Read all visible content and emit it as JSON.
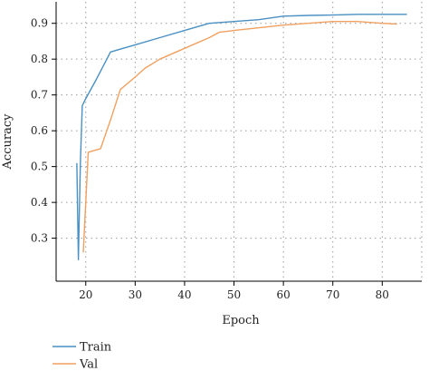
{
  "chart_data": {
    "type": "line",
    "title": "",
    "xlabel": "Epoch",
    "ylabel": "Accuracy",
    "xlim": [
      14,
      88
    ],
    "ylim": [
      0.18,
      0.96
    ],
    "xticks": [
      20,
      30,
      40,
      50,
      60,
      70,
      80
    ],
    "yticks": [
      0.3,
      0.4,
      0.5,
      0.6,
      0.7,
      0.8,
      0.9
    ],
    "xtick_labels": [
      "20",
      "30",
      "40",
      "50",
      "60",
      "70",
      "80"
    ],
    "ytick_labels": [
      "0.3",
      "0.4",
      "0.5",
      "0.6",
      "0.7",
      "0.8",
      "0.9"
    ],
    "grid": true,
    "legend_position": "bottom-left",
    "series": [
      {
        "name": "Train",
        "color": "#4a90c2",
        "x": [
          18.2,
          18.5,
          18.9,
          19.3,
          20,
          22,
          25,
          30,
          35,
          40,
          45,
          50,
          55,
          60,
          65,
          70,
          75,
          80,
          85
        ],
        "y": [
          0.51,
          0.24,
          0.51,
          0.67,
          0.69,
          0.74,
          0.82,
          0.84,
          0.86,
          0.88,
          0.9,
          0.905,
          0.91,
          0.92,
          0.922,
          0.923,
          0.925,
          0.925,
          0.925
        ]
      },
      {
        "name": "Val",
        "color": "#f0a060",
        "x": [
          19.5,
          20.5,
          23,
          25,
          27,
          30,
          32,
          35,
          40,
          45,
          47,
          50,
          60,
          65,
          70,
          75,
          80,
          83
        ],
        "y": [
          0.26,
          0.54,
          0.55,
          0.63,
          0.715,
          0.75,
          0.775,
          0.8,
          0.83,
          0.86,
          0.875,
          0.88,
          0.895,
          0.9,
          0.905,
          0.905,
          0.9,
          0.898
        ]
      }
    ]
  }
}
